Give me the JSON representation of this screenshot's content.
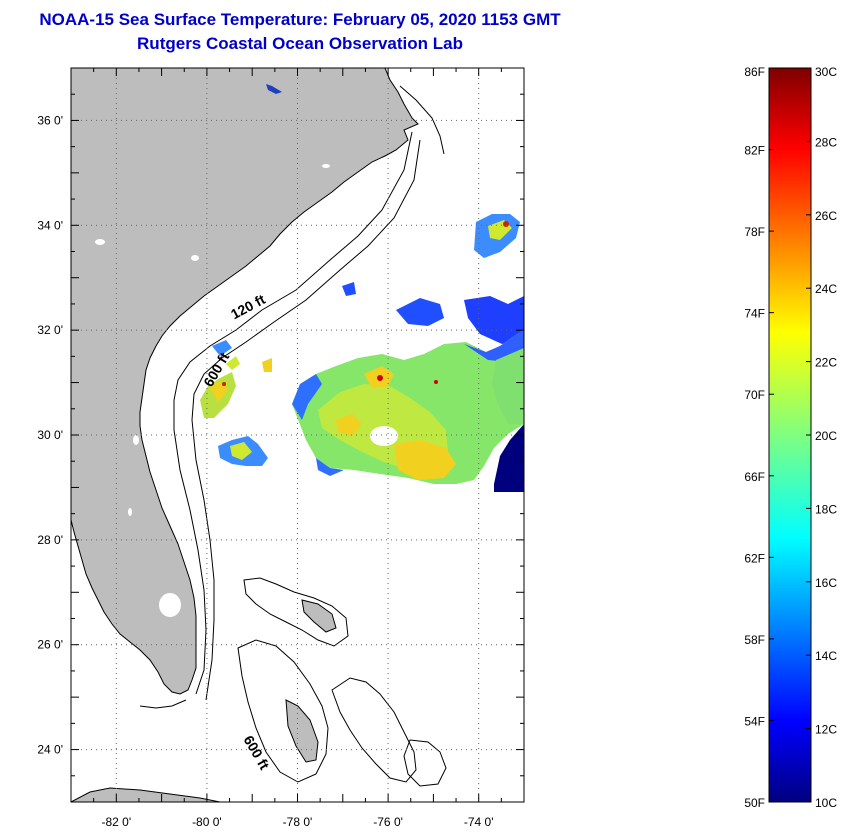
{
  "header": {
    "title": "NOAA-15 Sea Surface Temperature:  February 05, 2020 1153 GMT",
    "subtitle": "Rutgers Coastal Ocean Observation Lab"
  },
  "map": {
    "lon_range": [
      -83,
      -73
    ],
    "lat_range": [
      23,
      37
    ],
    "lon_ticks": [
      -82,
      -80,
      -78,
      -76,
      -74
    ],
    "lat_ticks": [
      24,
      26,
      28,
      30,
      32,
      34,
      36
    ],
    "lon_tick_labels": [
      "-82 0'",
      "-80 0'",
      "-78 0'",
      "-76 0'",
      "-74 0'"
    ],
    "lat_tick_labels": [
      "24 0'",
      "26 0'",
      "28 0'",
      "30 0'",
      "32 0'",
      "34 0'",
      "36 0'"
    ],
    "contour_labels": [
      {
        "text": "120 ft",
        "lon": -79.4,
        "lat": 32.2
      },
      {
        "text": "600 ft",
        "lon": -79.9,
        "lat": 30.9
      },
      {
        "text": "600 ft",
        "lon": -79.2,
        "lat": 24.2
      }
    ],
    "land_color": "#bdbdbd",
    "grid": "dotted"
  },
  "colorbar": {
    "f_labels": [
      "86F",
      "82F",
      "78F",
      "74F",
      "70F",
      "66F",
      "62F",
      "58F",
      "54F",
      "50F"
    ],
    "f_values": [
      86,
      82,
      78,
      74,
      70,
      66,
      62,
      58,
      54,
      50
    ],
    "c_labels": [
      "30C",
      "28C",
      "26C",
      "24C",
      "22C",
      "20C",
      "18C",
      "16C",
      "14C",
      "12C",
      "10C"
    ],
    "c_values": [
      30,
      28,
      26,
      24,
      22,
      20,
      18,
      16,
      14,
      12,
      10
    ],
    "range_c": [
      10,
      30
    ],
    "colormap": "jet"
  }
}
